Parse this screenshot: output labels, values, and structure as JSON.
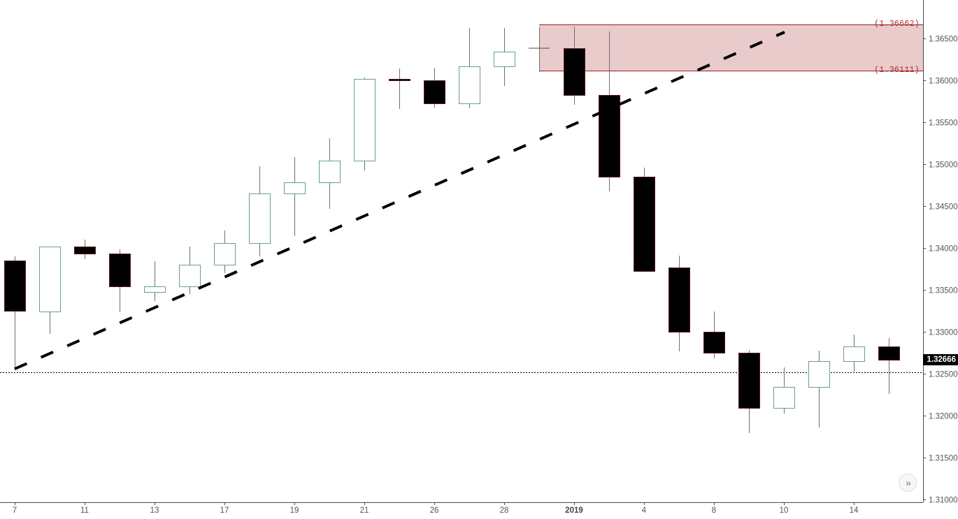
{
  "chart_data": {
    "type": "candlestick",
    "title": "",
    "xlabel": "",
    "ylabel": "",
    "ylim": [
      1.31,
      1.3692
    ],
    "grid": false,
    "x_ticks": [
      {
        "label": "7",
        "x": 21
      },
      {
        "label": "11",
        "x": 121
      },
      {
        "label": "13",
        "x": 221
      },
      {
        "label": "17",
        "x": 321
      },
      {
        "label": "19",
        "x": 421
      },
      {
        "label": "21",
        "x": 521
      },
      {
        "label": "26",
        "x": 621
      },
      {
        "label": "28",
        "x": 721
      },
      {
        "label": "2019",
        "x": 821,
        "bold": true
      },
      {
        "label": "4",
        "x": 921
      },
      {
        "label": "8",
        "x": 1021
      },
      {
        "label": "10",
        "x": 1121
      },
      {
        "label": "14",
        "x": 1221
      }
    ],
    "y_ticks": [
      "1.36500",
      "1.36000",
      "1.35500",
      "1.35000",
      "1.34500",
      "1.34000",
      "1.33500",
      "1.33000",
      "1.32500",
      "1.32000",
      "1.31500",
      "1.31000"
    ],
    "y_tick_values": [
      1.365,
      1.36,
      1.355,
      1.35,
      1.345,
      1.34,
      1.335,
      1.33,
      1.325,
      1.32,
      1.315,
      1.31
    ],
    "candles": [
      {
        "x": 21,
        "open": 1.3385,
        "high": 1.339,
        "low": 1.32542,
        "close": 1.3325,
        "date": "7"
      },
      {
        "x": 71,
        "open": 1.33242,
        "high": 1.34,
        "low": 1.32975,
        "close": 1.34017
      },
      {
        "x": 121,
        "open": 1.34017,
        "high": 1.341,
        "low": 1.33867,
        "close": 1.33933,
        "date": "11"
      },
      {
        "x": 171,
        "open": 1.33933,
        "high": 1.33983,
        "low": 1.33233,
        "close": 1.33542
      },
      {
        "x": 221,
        "open": 1.33475,
        "high": 1.33842,
        "low": 1.33367,
        "close": 1.33542,
        "date": "13"
      },
      {
        "x": 271,
        "open": 1.33542,
        "high": 1.34017,
        "low": 1.3345,
        "close": 1.338
      },
      {
        "x": 321,
        "open": 1.338,
        "high": 1.34208,
        "low": 1.337,
        "close": 1.34058,
        "date": "17"
      },
      {
        "x": 371,
        "open": 1.34058,
        "high": 1.34975,
        "low": 1.339,
        "close": 1.3465
      },
      {
        "x": 421,
        "open": 1.3465,
        "high": 1.35083,
        "low": 1.34142,
        "close": 1.34783,
        "date": "19"
      },
      {
        "x": 471,
        "open": 1.34783,
        "high": 1.35308,
        "low": 1.34467,
        "close": 1.35042
      },
      {
        "x": 521,
        "open": 1.35042,
        "high": 1.36033,
        "low": 1.34925,
        "close": 1.36017,
        "date": "21"
      },
      {
        "x": 571,
        "open": 1.36017,
        "high": 1.36142,
        "low": 1.35658,
        "close": 1.36
      },
      {
        "x": 621,
        "open": 1.36,
        "high": 1.3615,
        "low": 1.35675,
        "close": 1.35725,
        "date": "26"
      },
      {
        "x": 671,
        "open": 1.35725,
        "high": 1.36625,
        "low": 1.35667,
        "close": 1.36167
      },
      {
        "x": 721,
        "open": 1.36167,
        "high": 1.36625,
        "low": 1.35933,
        "close": 1.36342,
        "date": "28"
      },
      {
        "x": 771,
        "open": 1.36383,
        "high": 1.36633,
        "low": 1.361,
        "close": 1.36383
      },
      {
        "x": 821,
        "open": 1.36383,
        "high": 1.36642,
        "low": 1.35708,
        "close": 1.35825,
        "date": "2019"
      },
      {
        "x": 871,
        "open": 1.35825,
        "high": 1.36583,
        "low": 1.34675,
        "close": 1.3485
      },
      {
        "x": 921,
        "open": 1.3485,
        "high": 1.34958,
        "low": 1.33725,
        "close": 1.33725,
        "date": "4"
      },
      {
        "x": 971,
        "open": 1.33767,
        "high": 1.33908,
        "low": 1.32767,
        "close": 1.33
      },
      {
        "x": 1021,
        "open": 1.33,
        "high": 1.33242,
        "low": 1.32683,
        "close": 1.3275,
        "date": "8"
      },
      {
        "x": 1071,
        "open": 1.3275,
        "high": 1.32783,
        "low": 1.31792,
        "close": 1.32092
      },
      {
        "x": 1121,
        "open": 1.32092,
        "high": 1.32575,
        "low": 1.32025,
        "close": 1.32342,
        "date": "10"
      },
      {
        "x": 1171,
        "open": 1.32342,
        "high": 1.32775,
        "low": 1.31858,
        "close": 1.3265
      },
      {
        "x": 1221,
        "open": 1.3265,
        "high": 1.32967,
        "low": 1.32525,
        "close": 1.32825,
        "date": "14"
      },
      {
        "x": 1271,
        "open": 1.32825,
        "high": 1.32925,
        "low": 1.32258,
        "close": 1.32666
      }
    ],
    "annotations": {
      "trend_line": {
        "x1": 21,
        "p1": 1.32558,
        "x2": 1122,
        "p2": 1.36575,
        "style": "dashed",
        "color": "#000000"
      },
      "horizontal_line": {
        "price": 1.32517,
        "style": "dotted",
        "color": "#000000"
      },
      "zone": {
        "x_start": 771,
        "top": 1.36662,
        "bottom": 1.36111,
        "top_label": "(1.36662)",
        "bottom_label": "(1.36111)",
        "fill": "#e8c8c9",
        "stroke": "#a01818"
      }
    },
    "last_price": "1.32666"
  },
  "colors": {
    "up_border": "#6a9f86",
    "down_fill": "#000000",
    "down_border": "#5a1a1a",
    "wick": "#707070",
    "axis": "#4a4a4a",
    "axis_text": "#555555"
  },
  "controls": {
    "scroll_to_latest": "»"
  }
}
